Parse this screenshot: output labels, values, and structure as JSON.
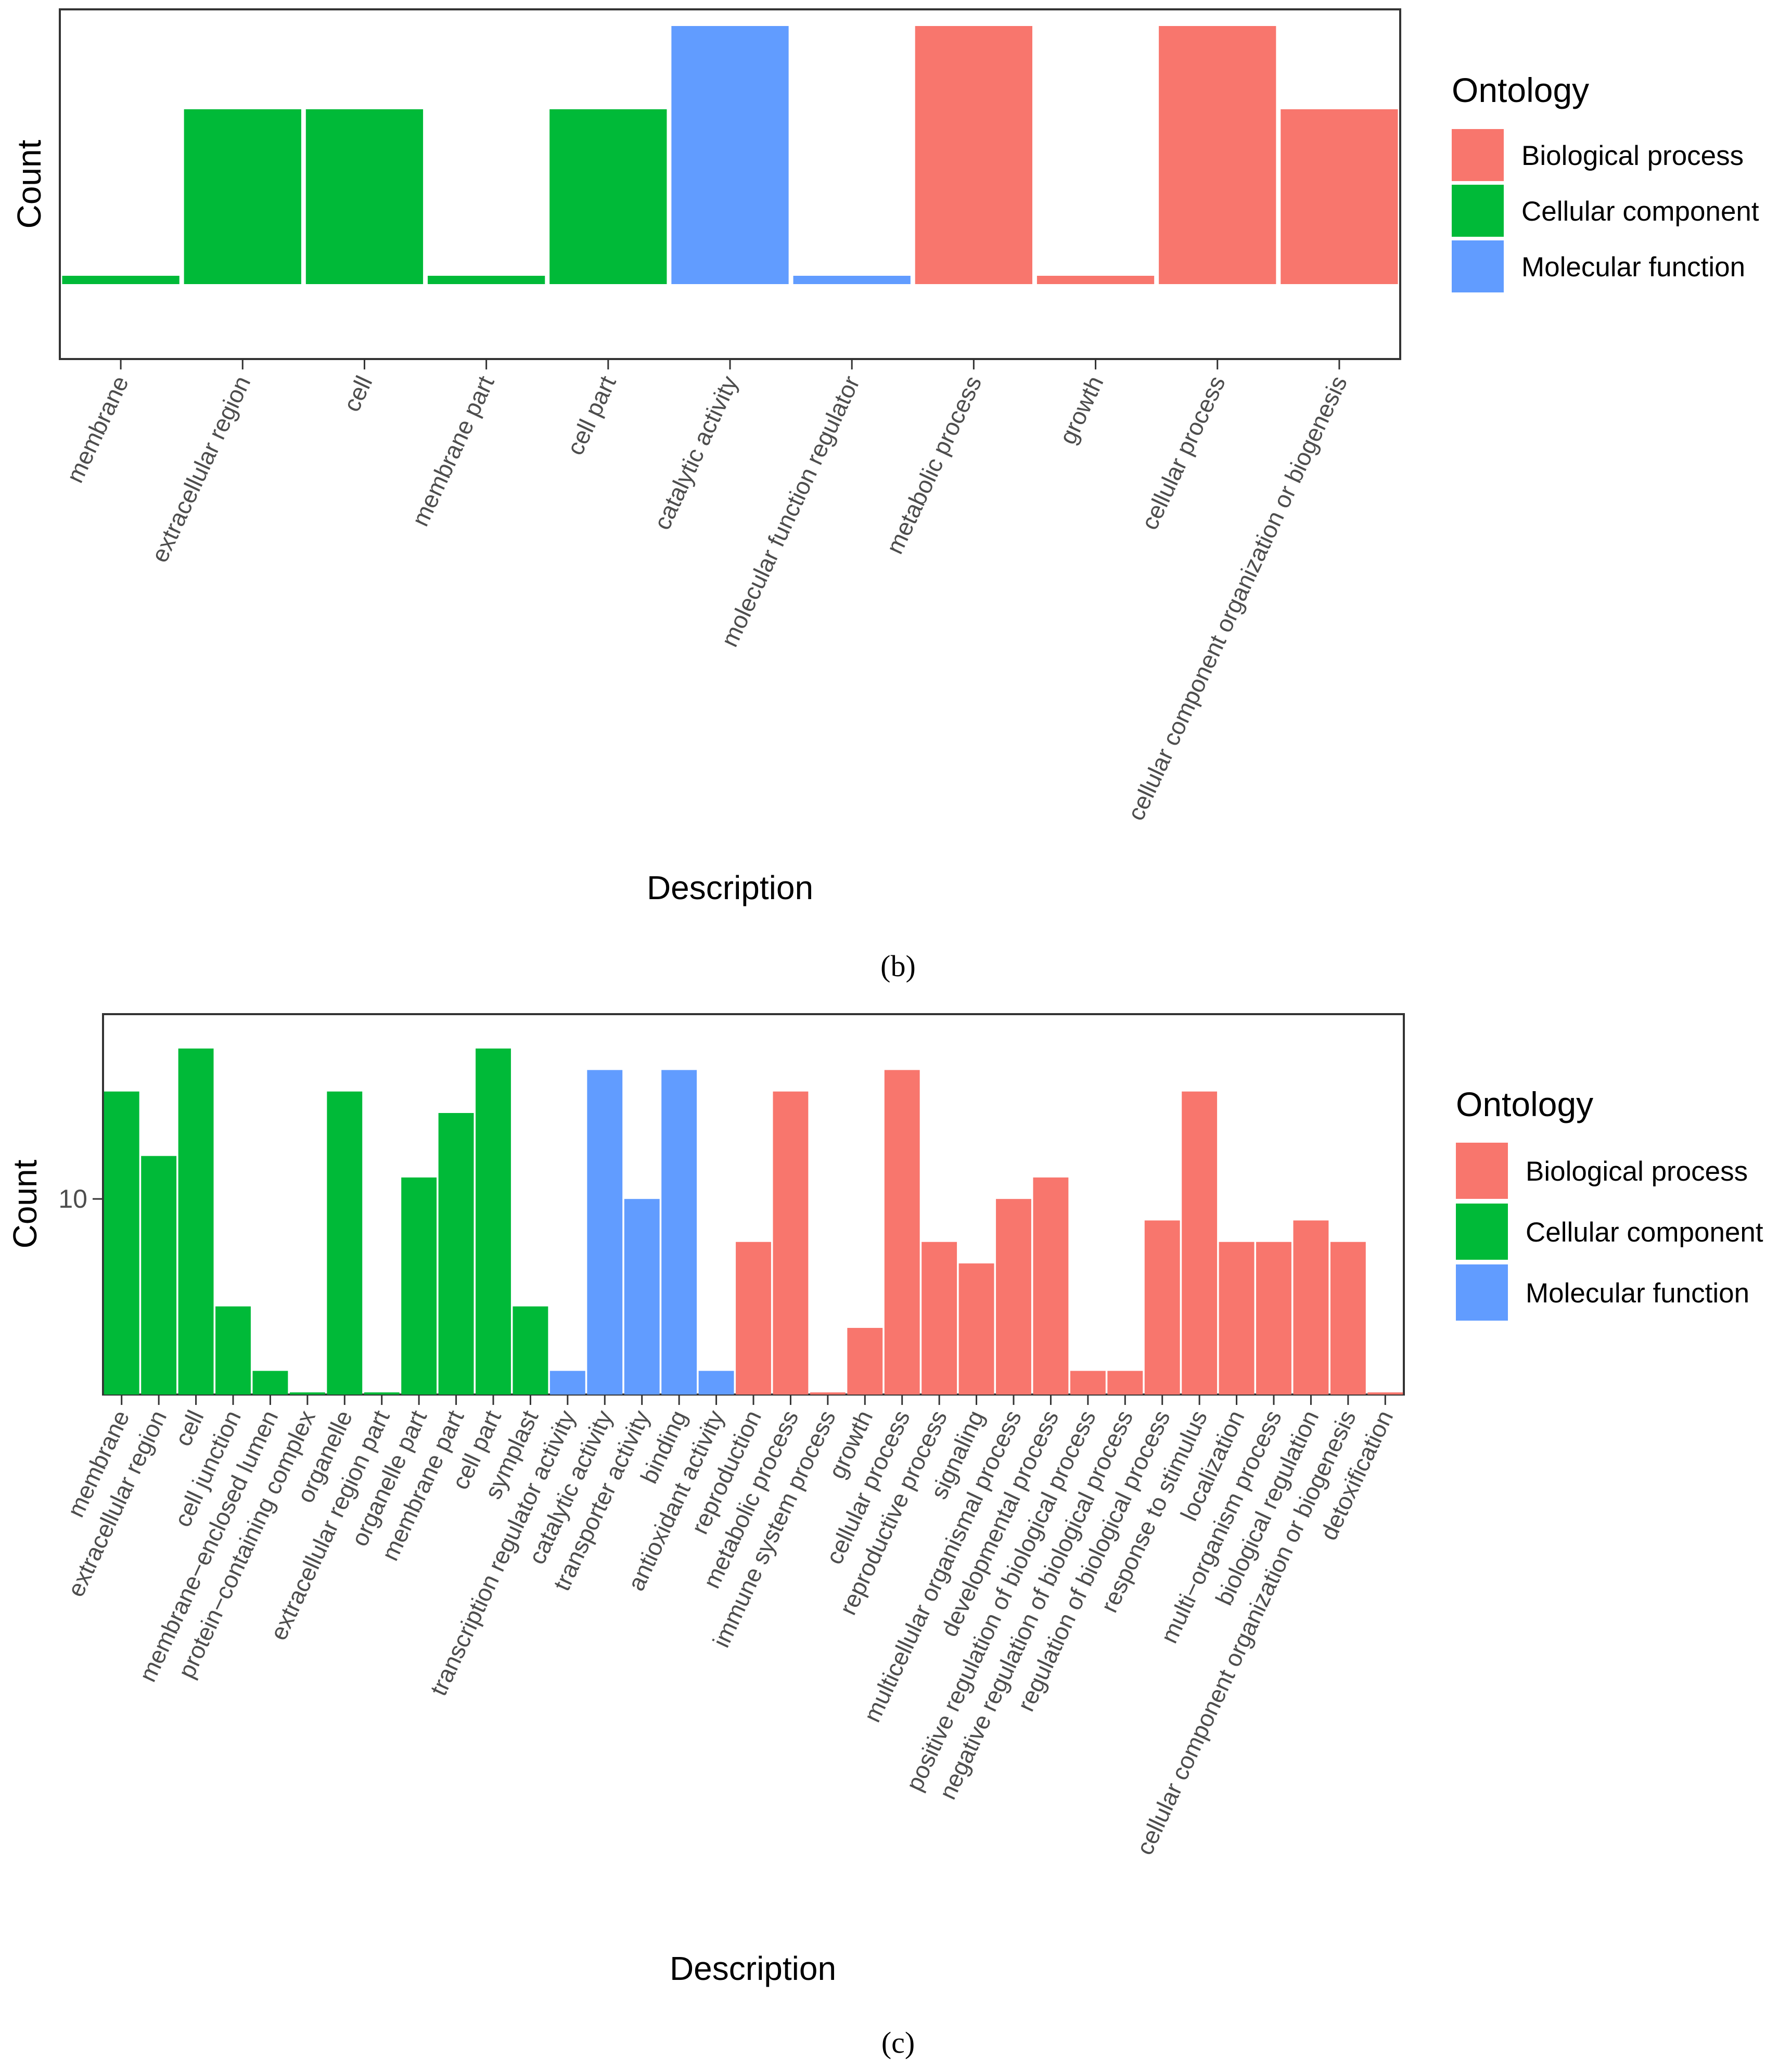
{
  "colors": {
    "Biological process": "#F8766D",
    "Cellular component": "#00BA38",
    "Molecular function": "#619CFF",
    "panel_border": "#333333",
    "tick": "#333333"
  },
  "chart_data": [
    {
      "type": "bar",
      "panel": "b",
      "caption": "(b)",
      "xlabel": "Description",
      "ylabel": "Count",
      "ylim": [
        0,
        4.2
      ],
      "yticks": [],
      "grid": false,
      "legend": {
        "title": "Ontology",
        "position": "right",
        "entries": [
          "Biological process",
          "Cellular component",
          "Molecular function"
        ]
      },
      "categories": [
        "membrane",
        "extracellular region",
        "cell",
        "membrane part",
        "cell part",
        "catalytic activity",
        "molecular function regulator",
        "metabolic process",
        "growth",
        "cellular process",
        "cellular component organization or biogenesis"
      ],
      "values": [
        1,
        3,
        3,
        1,
        3,
        4,
        1,
        4,
        1,
        4,
        3
      ],
      "ontology": [
        "Cellular component",
        "Cellular component",
        "Cellular component",
        "Cellular component",
        "Cellular component",
        "Molecular function",
        "Molecular function",
        "Biological process",
        "Biological process",
        "Biological process",
        "Biological process"
      ]
    },
    {
      "type": "bar",
      "panel": "c",
      "caption": "(c)",
      "xlabel": "Description",
      "ylabel": "Count",
      "ylim": [
        0.9,
        18.6
      ],
      "yticks": [
        10
      ],
      "grid": false,
      "legend": {
        "title": "Ontology",
        "position": "right",
        "entries": [
          "Biological process",
          "Cellular component",
          "Molecular function"
        ]
      },
      "categories": [
        "membrane",
        "extracellular region",
        "cell",
        "cell junction",
        "membrane−enclosed lumen",
        "protein−containing complex",
        "organelle",
        "extracellular region part",
        "organelle part",
        "membrane part",
        "cell part",
        "symplast",
        "transcription regulator activity",
        "catalytic activity",
        "transporter activity",
        "binding",
        "antioxidant activity",
        "reproduction",
        "metabolic process",
        "immune system process",
        "growth",
        "cellular process",
        "reproductive process",
        "signaling",
        "multicellular organismal process",
        "developmental process",
        "positive regulation of biological process",
        "negative regulation of biological process",
        "regulation of biological process",
        "response to stimulus",
        "localization",
        "multi−organism process",
        "biological regulation",
        "cellular component organization or biogenesis",
        "detoxification"
      ],
      "values": [
        15,
        12,
        17,
        5,
        2,
        1,
        15,
        1,
        11,
        14,
        17,
        5,
        2,
        16,
        10,
        16,
        2,
        8,
        15,
        1,
        4,
        16,
        8,
        7,
        10,
        11,
        2,
        2,
        9,
        15,
        8,
        8,
        9,
        8,
        1
      ],
      "ontology": [
        "Cellular component",
        "Cellular component",
        "Cellular component",
        "Cellular component",
        "Cellular component",
        "Cellular component",
        "Cellular component",
        "Cellular component",
        "Cellular component",
        "Cellular component",
        "Cellular component",
        "Cellular component",
        "Molecular function",
        "Molecular function",
        "Molecular function",
        "Molecular function",
        "Molecular function",
        "Biological process",
        "Biological process",
        "Biological process",
        "Biological process",
        "Biological process",
        "Biological process",
        "Biological process",
        "Biological process",
        "Biological process",
        "Biological process",
        "Biological process",
        "Biological process",
        "Biological process",
        "Biological process",
        "Biological process",
        "Biological process",
        "Biological process",
        "Biological process"
      ]
    }
  ]
}
